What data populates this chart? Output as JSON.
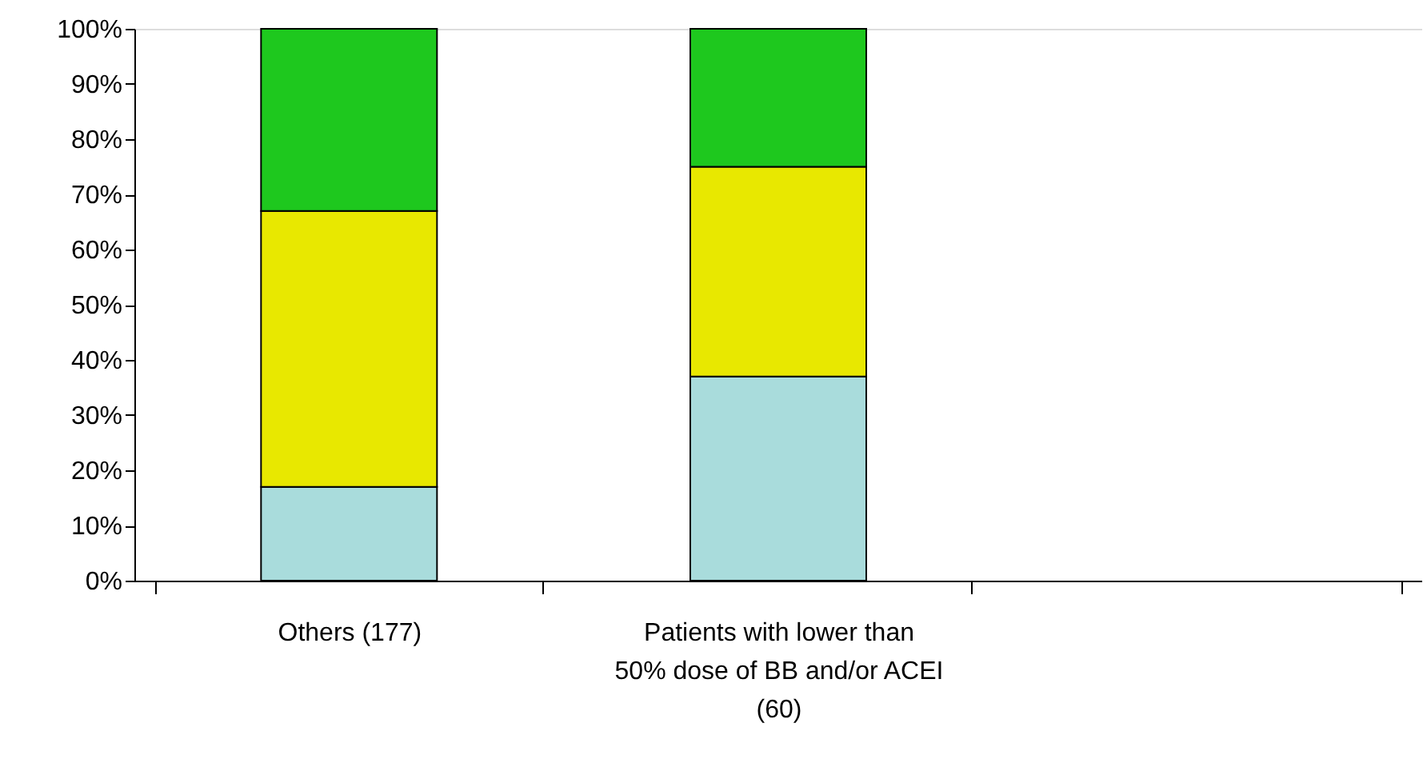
{
  "chart_data": {
    "type": "bar",
    "stacked": true,
    "categories": [
      "Others (177)",
      "Patients with lower than 50% dose of BB and/or ACEI (60)",
      null
    ],
    "series": [
      {
        "color": "#a9dcdc",
        "values": [
          17,
          37,
          null
        ]
      },
      {
        "color": "#e8e800",
        "values": [
          50,
          38,
          null
        ]
      },
      {
        "color": "#1ec81e",
        "values": [
          33,
          25,
          null
        ]
      }
    ],
    "ylim": [
      0,
      100
    ],
    "yticks": [
      {
        "value": 0,
        "label": "0%"
      },
      {
        "value": 10,
        "label": "10%"
      },
      {
        "value": 20,
        "label": "20%"
      },
      {
        "value": 30,
        "label": "30%"
      },
      {
        "value": 40,
        "label": "40%"
      },
      {
        "value": 50,
        "label": "50%"
      },
      {
        "value": 60,
        "label": "60%"
      },
      {
        "value": 70,
        "label": "70%"
      },
      {
        "value": 80,
        "label": "80%"
      },
      {
        "value": 90,
        "label": "90%"
      },
      {
        "value": 100,
        "label": "100%"
      }
    ],
    "grid": false,
    "legend": false
  }
}
